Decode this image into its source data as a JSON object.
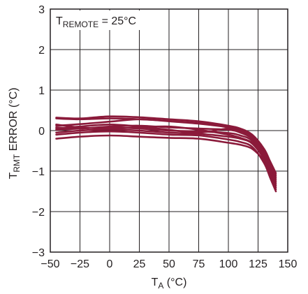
{
  "chart_data": {
    "type": "line",
    "annotation": {
      "main": "T",
      "sub": "REMOTE",
      "rest": " = 25°C"
    },
    "xlabel": {
      "main": "T",
      "sub": "A",
      "rest": " (°C)"
    },
    "ylabel": {
      "main": "T",
      "sub": "RMT",
      "rest": " ERROR (°C)"
    },
    "xlim": [
      -50,
      150
    ],
    "ylim": [
      -3,
      3
    ],
    "x_ticks": [
      "−50",
      "−25",
      "0",
      "25",
      "50",
      "75",
      "100",
      "125",
      "150"
    ],
    "y_ticks": [
      "3",
      "2",
      "1",
      "0",
      "−1",
      "−2",
      "−3"
    ],
    "grid": true,
    "line_color": "#8b1a3a",
    "x": [
      -45,
      -25,
      0,
      25,
      50,
      75,
      100,
      110,
      120,
      130,
      135,
      140
    ],
    "series": [
      {
        "values": [
          0.32,
          0.3,
          0.35,
          0.33,
          0.28,
          0.23,
          0.12,
          0.05,
          -0.1,
          -0.45,
          -0.75,
          -1.05
        ]
      },
      {
        "values": [
          0.3,
          0.28,
          0.3,
          0.28,
          0.24,
          0.19,
          0.1,
          0.02,
          -0.12,
          -0.5,
          -0.8,
          -1.1
        ]
      },
      {
        "values": [
          0.12,
          0.16,
          0.22,
          0.28,
          0.23,
          0.17,
          0.08,
          0.0,
          -0.15,
          -0.55,
          -0.9,
          -1.2
        ]
      },
      {
        "values": [
          0.08,
          0.05,
          0.1,
          0.12,
          0.08,
          0.05,
          0.02,
          -0.05,
          -0.2,
          -0.55,
          -0.85,
          -1.15
        ]
      },
      {
        "values": [
          0.05,
          0.1,
          0.15,
          0.1,
          0.02,
          -0.05,
          0.05,
          -0.02,
          -0.18,
          -0.6,
          -0.95,
          -1.25
        ]
      },
      {
        "values": [
          0.02,
          0.05,
          0.08,
          0.05,
          0.0,
          -0.02,
          -0.06,
          -0.12,
          -0.25,
          -0.65,
          -1.0,
          -1.35
        ]
      },
      {
        "values": [
          -0.05,
          0.0,
          0.03,
          0.0,
          -0.05,
          -0.08,
          -0.15,
          -0.2,
          -0.32,
          -0.7,
          -1.05,
          -1.4
        ]
      },
      {
        "values": [
          -0.1,
          -0.05,
          -0.02,
          -0.05,
          -0.1,
          -0.12,
          -0.22,
          -0.28,
          -0.4,
          -0.8,
          -1.15,
          -1.5
        ]
      },
      {
        "values": [
          -0.2,
          -0.15,
          -0.12,
          -0.15,
          -0.18,
          -0.2,
          -0.3,
          -0.35,
          -0.45,
          -0.75,
          -1.1,
          -1.45
        ]
      },
      {
        "values": [
          0.15,
          0.08,
          0.05,
          0.08,
          0.1,
          0.02,
          -0.1,
          -0.18,
          -0.3,
          -0.6,
          -0.95,
          -1.3
        ]
      }
    ]
  }
}
